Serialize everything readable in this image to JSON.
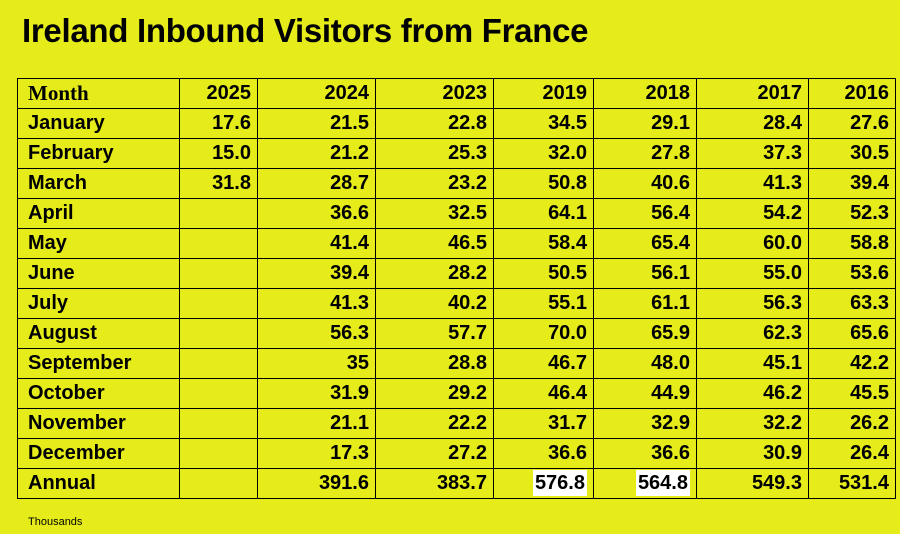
{
  "title": "Ireland Inbound Visitors from France",
  "footnote": "Thousands",
  "chart_data": {
    "type": "table",
    "title": "Ireland Inbound Visitors from France",
    "unit": "Thousands",
    "columns": [
      "Month",
      "2025",
      "2024",
      "2023",
      "2019",
      "2018",
      "2017",
      "2016"
    ],
    "rows": [
      {
        "label": "January",
        "values": [
          "17.6",
          "21.5",
          "22.8",
          "34.5",
          "29.1",
          "28.4",
          "27.6"
        ]
      },
      {
        "label": "February",
        "values": [
          "15.0",
          "21.2",
          "25.3",
          "32.0",
          "27.8",
          "37.3",
          "30.5"
        ]
      },
      {
        "label": "March",
        "values": [
          "31.8",
          "28.7",
          "23.2",
          "50.8",
          "40.6",
          "41.3",
          "39.4"
        ]
      },
      {
        "label": "April",
        "values": [
          "",
          "36.6",
          "32.5",
          "64.1",
          "56.4",
          "54.2",
          "52.3"
        ]
      },
      {
        "label": "May",
        "values": [
          "",
          "41.4",
          "46.5",
          "58.4",
          "65.4",
          "60.0",
          "58.8"
        ]
      },
      {
        "label": "June",
        "values": [
          "",
          "39.4",
          "28.2",
          "50.5",
          "56.1",
          "55.0",
          "53.6"
        ]
      },
      {
        "label": "July",
        "values": [
          "",
          "41.3",
          "40.2",
          "55.1",
          "61.1",
          "56.3",
          "63.3"
        ]
      },
      {
        "label": "August",
        "values": [
          "",
          "56.3",
          "57.7",
          "70.0",
          "65.9",
          "62.3",
          "65.6"
        ]
      },
      {
        "label": "September",
        "values": [
          "",
          "35",
          "28.8",
          "46.7",
          "48.0",
          "45.1",
          "42.2"
        ]
      },
      {
        "label": "October",
        "values": [
          "",
          "31.9",
          "29.2",
          "46.4",
          "44.9",
          "46.2",
          "45.5"
        ]
      },
      {
        "label": "November",
        "values": [
          "",
          "21.1",
          "22.2",
          "31.7",
          "32.9",
          "32.2",
          "26.2"
        ]
      },
      {
        "label": "December",
        "values": [
          "",
          "17.3",
          "27.2",
          "36.6",
          "36.6",
          "30.9",
          "26.4"
        ]
      },
      {
        "label": "Annual",
        "values": [
          "",
          "391.6",
          "383.7",
          "576.8",
          "564.8",
          "549.3",
          "531.4"
        ]
      }
    ],
    "highlighted_cells": [
      {
        "row": "Annual",
        "column": "2019"
      },
      {
        "row": "Annual",
        "column": "2018"
      }
    ],
    "highlight_color": "#ffffff",
    "background_color": "#e6ec1a"
  }
}
